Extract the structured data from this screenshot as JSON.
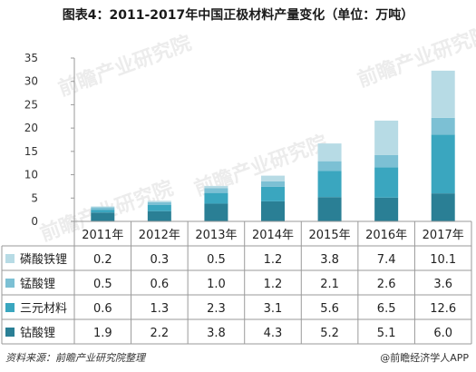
{
  "title": "图表4：2011-2017年中国正极材料产量变化（单位：万吨）",
  "source": "资料来源：前瞻产业研究院整理",
  "brand": "@前瞻经济学人APP",
  "watermark": "前瞻产业研究院",
  "chart_data": {
    "type": "bar",
    "stacked": true,
    "categories": [
      "2011年",
      "2012年",
      "2013年",
      "2014年",
      "2015年",
      "2016年",
      "2017年"
    ],
    "series": [
      {
        "name": "磷酸铁锂",
        "color": "#b7dbe5",
        "values": [
          0.2,
          0.3,
          0.5,
          1.2,
          3.8,
          7.4,
          10.1
        ]
      },
      {
        "name": "锰酸锂",
        "color": "#7cc0d4",
        "values": [
          0.5,
          0.6,
          1.0,
          1.2,
          2.1,
          2.6,
          3.6
        ]
      },
      {
        "name": "三元材料",
        "color": "#3aa6bf",
        "values": [
          0.6,
          1.3,
          2.3,
          3.1,
          5.6,
          6.5,
          12.6
        ]
      },
      {
        "name": "钴酸锂",
        "color": "#2a7f95",
        "values": [
          1.9,
          2.2,
          3.8,
          4.3,
          5.2,
          5.1,
          6.0
        ]
      }
    ],
    "table_labels": [
      [
        "0.2",
        "0.3",
        "0.5",
        "1.2",
        "3.8",
        "7.4",
        "10.1"
      ],
      [
        "0.5",
        "0.6",
        "1.0",
        "1.2",
        "2.1",
        "2.6",
        "3.6"
      ],
      [
        "0.6",
        "1.3",
        "2.3",
        "3.1",
        "5.6",
        "6.5",
        "12.6"
      ],
      [
        "1.9",
        "2.2",
        "3.8",
        "4.3",
        "5.2",
        "5.1",
        "6.0"
      ]
    ],
    "yticks": [
      "0",
      "5",
      "10",
      "15",
      "20",
      "25",
      "30",
      "35"
    ],
    "ylim": [
      0,
      35
    ],
    "grid": false,
    "legend": "table-below"
  }
}
